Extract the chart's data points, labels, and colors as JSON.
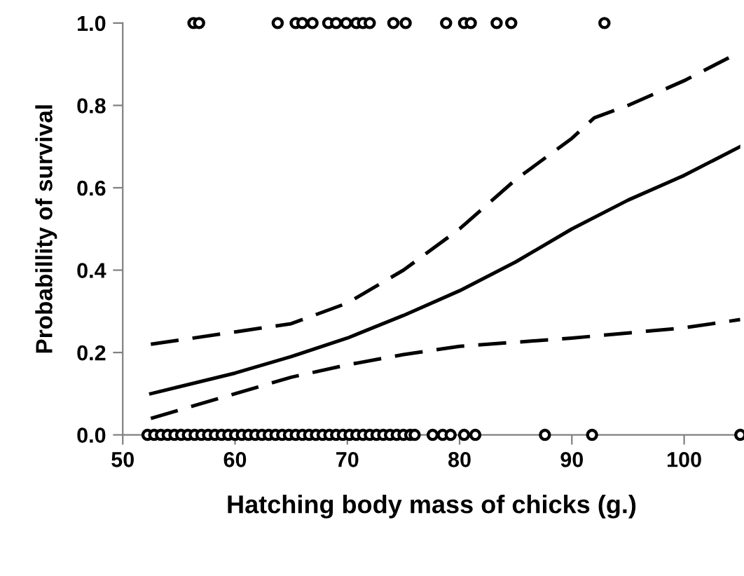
{
  "chart_data": {
    "type": "scatter",
    "xlabel": "Hatching body mass of chicks (g.)",
    "ylabel": "Probabillity of survival",
    "xlim": [
      50,
      105
    ],
    "xticks": [
      50,
      60,
      70,
      80,
      90,
      100
    ],
    "ylim": [
      0,
      1
    ],
    "yticks": [
      {
        "value": 0,
        "label": "0.0"
      },
      {
        "value": 0.2,
        "label": "0.2"
      },
      {
        "value": 0.4,
        "label": "0.4"
      },
      {
        "value": 0.6,
        "label": "0.6"
      },
      {
        "value": 0.8,
        "label": "0.8"
      },
      {
        "value": 1,
        "label": "1.0"
      }
    ],
    "grid": false,
    "legend": false,
    "series": [
      {
        "marker": "circle",
        "color": "#000000",
        "x": [
          56.3,
          56.8,
          63.8,
          65.4,
          66.0,
          66.9,
          68.3,
          69.0,
          69.9,
          70.8,
          71.4,
          72.0,
          74.1,
          75.2,
          78.8,
          80.4,
          81.0,
          83.3,
          84.6,
          92.9
        ],
        "values": [
          1,
          1,
          1,
          1,
          1,
          1,
          1,
          1,
          1,
          1,
          1,
          1,
          1,
          1,
          1,
          1,
          1,
          1,
          1,
          1
        ]
      },
      {
        "marker": "circle",
        "color": "#000000",
        "x": [
          52.2,
          52.8,
          53.4,
          54.0,
          54.6,
          55.2,
          55.8,
          56.4,
          57.0,
          57.6,
          58.2,
          58.8,
          59.4,
          60.0,
          60.6,
          61.2,
          61.8,
          62.4,
          63.0,
          63.6,
          64.2,
          64.8,
          65.4,
          66.0,
          66.6,
          67.2,
          67.8,
          68.4,
          69.0,
          69.6,
          70.2,
          70.8,
          71.4,
          72.0,
          72.6,
          73.2,
          73.8,
          74.4,
          75.0,
          75.6,
          76.0,
          77.6,
          78.5,
          79.2,
          80.4,
          81.4,
          87.6,
          91.8,
          105
        ],
        "values": [
          0,
          0,
          0,
          0,
          0,
          0,
          0,
          0,
          0,
          0,
          0,
          0,
          0,
          0,
          0,
          0,
          0,
          0,
          0,
          0,
          0,
          0,
          0,
          0,
          0,
          0,
          0,
          0,
          0,
          0,
          0,
          0,
          0,
          0,
          0,
          0,
          0,
          0,
          0,
          0,
          0,
          0,
          0,
          0,
          0,
          0,
          0,
          0,
          0
        ]
      },
      {
        "type": "line",
        "line_style": "solid",
        "color": "#000000",
        "x": [
          52.5,
          60,
          65,
          70,
          75,
          80,
          85,
          90,
          95,
          100,
          105
        ],
        "values": [
          0.1,
          0.15,
          0.19,
          0.235,
          0.29,
          0.35,
          0.42,
          0.5,
          0.57,
          0.63,
          0.7
        ]
      },
      {
        "type": "line",
        "line_style": "dashed",
        "color": "#000000",
        "x": [
          52.5,
          60,
          65,
          70,
          75,
          80,
          85,
          90,
          92,
          95,
          100,
          105
        ],
        "values": [
          0.22,
          0.25,
          0.27,
          0.32,
          0.4,
          0.5,
          0.62,
          0.72,
          0.77,
          0.8,
          0.86,
          0.93
        ]
      },
      {
        "type": "line",
        "line_style": "dashed",
        "color": "#000000",
        "x": [
          52.5,
          60,
          65,
          70,
          75,
          80,
          90,
          100,
          105
        ],
        "values": [
          0.04,
          0.1,
          0.14,
          0.17,
          0.195,
          0.215,
          0.235,
          0.26,
          0.28
        ]
      }
    ]
  }
}
